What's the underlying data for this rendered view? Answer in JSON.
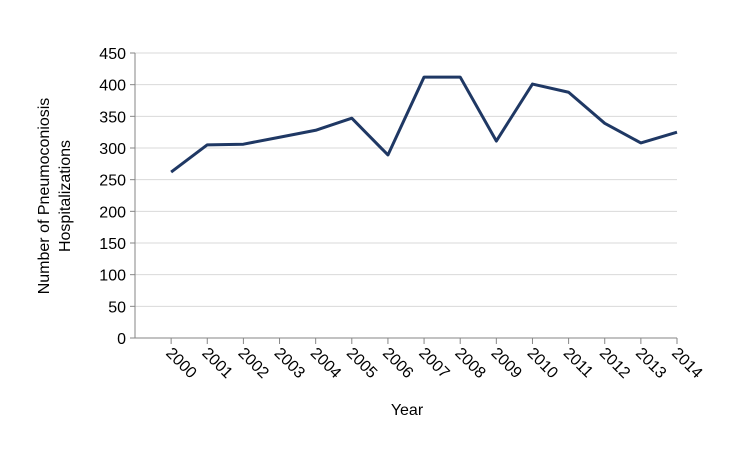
{
  "chart_data": {
    "type": "line",
    "x_label": "Year",
    "y_label": [
      "Number of Pneumoconiosis",
      "Hospitalizations"
    ],
    "x": [
      2000,
      2001,
      2002,
      2003,
      2004,
      2005,
      2006,
      2007,
      2008,
      2009,
      2010,
      2011,
      2012,
      2013,
      2014
    ],
    "series": [
      {
        "color": "#1f3864",
        "values": [
          262,
          305,
          306,
          317,
          328,
          347,
          289,
          412,
          412,
          311,
          401,
          388,
          339,
          308,
          325
        ]
      }
    ],
    "xlim": [
      1999,
      2014
    ],
    "xticks": [
      2000,
      2001,
      2002,
      2003,
      2004,
      2005,
      2006,
      2007,
      2008,
      2009,
      2010,
      2011,
      2012,
      2013,
      2014
    ],
    "ylim": [
      0,
      450
    ],
    "yticks": [
      0,
      50,
      100,
      150,
      200,
      250,
      300,
      350,
      400,
      450
    ],
    "grid": true
  }
}
